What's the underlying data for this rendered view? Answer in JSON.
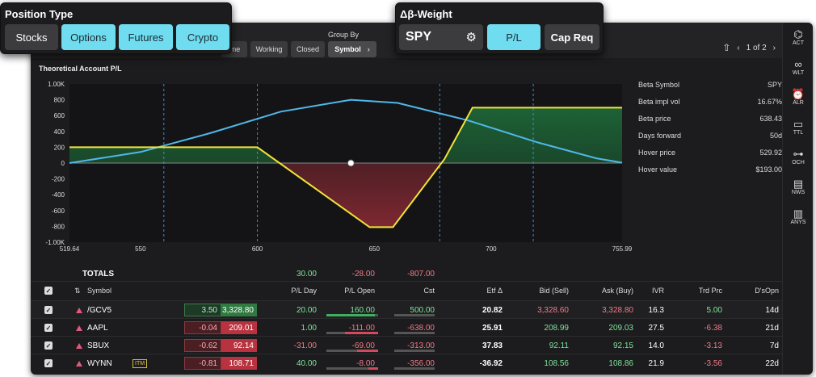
{
  "colors": {
    "accent": "#6fdcf0",
    "profit": "#7fe39a",
    "loss": "#f07a88",
    "curve_today": "#4fb8e8",
    "curve_expiry": "#f2e43a"
  },
  "position_type": {
    "title": "Position Type",
    "buttons": [
      "Stocks",
      "Options",
      "Futures",
      "Crypto"
    ],
    "selected": [
      "Options",
      "Futures",
      "Crypto"
    ]
  },
  "beta_weight": {
    "title": "Δβ-Weight",
    "symbol": "SPY",
    "settings_icon": "gear-icon",
    "buttons": [
      "P/L",
      "Cap Req"
    ],
    "selected": "P/L"
  },
  "toolbar": {
    "group_by_label": "Group By",
    "tabs": [
      "ime",
      "Working",
      "Closed",
      "Symbol"
    ],
    "active": "Symbol",
    "share_icon": "share-icon",
    "page": "1 of 2"
  },
  "chart_panel": {
    "title": "Theoretical Account P/L",
    "info": [
      {
        "label": "Beta Symbol",
        "value": "SPY"
      },
      {
        "label": "Beta impl vol",
        "value": "16.67%"
      },
      {
        "label": "Beta price",
        "value": "638.43"
      },
      {
        "label": "Days forward",
        "value": "50d"
      },
      {
        "label": "Hover price",
        "value": "529.92"
      },
      {
        "label": "Hover value",
        "value": "$193.00"
      }
    ]
  },
  "chart_data": {
    "type": "line",
    "x_ticks": [
      "519.64",
      "550",
      "600",
      "650",
      "700",
      "755.99"
    ],
    "y_ticks": [
      "1.00K",
      "800",
      "600",
      "400",
      "200",
      "0",
      "-200",
      "-400",
      "-600",
      "-800",
      "-1.00K"
    ],
    "xlim": [
      519.64,
      755.99
    ],
    "ylim": [
      -1000,
      1000
    ],
    "series": [
      {
        "points": [
          [
            519.64,
            200
          ],
          [
            600,
            200
          ],
          [
            648,
            -810
          ],
          [
            658,
            -810
          ],
          [
            680,
            50
          ],
          [
            692,
            700
          ],
          [
            755.99,
            700
          ]
        ]
      },
      {
        "points": [
          [
            519.64,
            0
          ],
          [
            550,
            140
          ],
          [
            580,
            380
          ],
          [
            610,
            650
          ],
          [
            640,
            800
          ],
          [
            660,
            760
          ],
          [
            690,
            540
          ],
          [
            720,
            260
          ],
          [
            745,
            60
          ],
          [
            755.99,
            5
          ]
        ]
      }
    ],
    "vertical_lines": [
      560,
      600,
      678,
      718
    ],
    "marker": [
      640,
      0
    ]
  },
  "sidebar": [
    {
      "label": "ACT",
      "icon": "activity-icon"
    },
    {
      "label": "WLT",
      "icon": "binoculars-icon"
    },
    {
      "label": "ALR",
      "icon": "alarm-icon"
    },
    {
      "label": "TTL",
      "icon": "tv-icon"
    },
    {
      "label": "OCH",
      "icon": "chain-icon"
    },
    {
      "label": "NWS",
      "icon": "news-icon"
    },
    {
      "label": "ANYS",
      "icon": "analysis-icon"
    }
  ],
  "totals": {
    "label": "TOTALS",
    "pl_day": "30.00",
    "pl_open": "-28.00",
    "cst": "-807.00"
  },
  "table": {
    "headers": [
      "Symbol",
      "P/L Day",
      "P/L Open",
      "Cst",
      "Etf Δ",
      "Bid (Sell)",
      "Ask (Buy)",
      "IVR",
      "Trd Prc",
      "D'sOpn"
    ],
    "rows": [
      {
        "symbol": "/GCV5",
        "chg": "3.50",
        "last": "3,328.80",
        "dir": "green",
        "itm": "",
        "pl_day": "20.00",
        "pl_open": "160.00",
        "cst": "500.00",
        "etf": "20.82",
        "bid": "3,328.60",
        "ask": "3,328.80",
        "ivr": "16.3",
        "trd": "5.00",
        "dsopn": "14d",
        "open_bar": 0.25
      },
      {
        "symbol": "AAPL",
        "chg": "-0.04",
        "last": "209.01",
        "dir": "red",
        "itm": "",
        "pl_day": "1.00",
        "pl_open": "-111.00",
        "cst": "-638.00",
        "etf": "25.91",
        "bid": "208.99",
        "ask": "209.03",
        "ivr": "27.5",
        "trd": "-6.38",
        "dsopn": "21d",
        "open_bar": -0.17
      },
      {
        "symbol": "SBUX",
        "chg": "-0.62",
        "last": "92.14",
        "dir": "red",
        "itm": "",
        "pl_day": "-31.00",
        "pl_open": "-69.00",
        "cst": "-313.00",
        "etf": "37.83",
        "bid": "92.11",
        "ask": "92.15",
        "ivr": "14.0",
        "trd": "-3.13",
        "dsopn": "7d",
        "open_bar": -0.11
      },
      {
        "symbol": "WYNN",
        "chg": "-0.81",
        "last": "108.71",
        "dir": "red",
        "itm": "ITM",
        "pl_day": "40.00",
        "pl_open": "-8.00",
        "cst": "-356.00",
        "etf": "-36.92",
        "bid": "108.56",
        "ask": "108.86",
        "ivr": "21.9",
        "trd": "-3.56",
        "dsopn": "22d",
        "open_bar": -0.05
      }
    ]
  }
}
